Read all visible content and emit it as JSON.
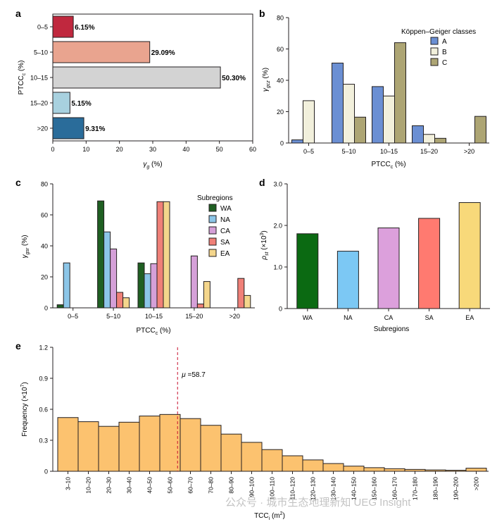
{
  "panels": {
    "a": {
      "letter": "a",
      "type": "hbar",
      "categories": [
        "0–5",
        "5–10",
        "10–15",
        "15–20",
        ">20"
      ],
      "values": [
        6.15,
        29.09,
        50.3,
        5.15,
        9.31
      ],
      "value_labels": [
        "6.15%",
        "29.09%",
        "50.30%",
        "5.15%",
        "9.31%"
      ],
      "colors": [
        "#c0283e",
        "#e9a48f",
        "#d3d3d3",
        "#a8d1df",
        "#2a6c9a"
      ],
      "xlim": [
        0,
        60
      ],
      "xticks": [
        0,
        10,
        20,
        30,
        40,
        50,
        60
      ],
      "ylabel": "PTCC",
      "ylabel_sub": "c",
      "ylabel_unit": " (%)",
      "xlabel": "γ",
      "xlabel_sub": "g",
      "xlabel_unit": " (%)"
    },
    "b": {
      "letter": "b",
      "type": "bar",
      "categories": [
        "0–5",
        "5–10",
        "10–15",
        "15–20",
        ">20"
      ],
      "series": [
        {
          "name": "A",
          "color": "#6b8fd3",
          "values": [
            2,
            51,
            36,
            11,
            0
          ]
        },
        {
          "name": "B",
          "color": "#f2f0dc",
          "values": [
            27,
            37.5,
            30,
            5.5,
            0
          ]
        },
        {
          "name": "C",
          "color": "#ada574",
          "values": [
            0,
            16.5,
            64,
            3,
            17
          ]
        }
      ],
      "ylim": [
        0,
        80
      ],
      "yticks": [
        0,
        20,
        40,
        60,
        80
      ],
      "ylabel": "γ",
      "ylabel_sub": "gcz",
      "ylabel_unit": " (%)",
      "xlabel": "PTCC",
      "xlabel_sub": "c",
      "xlabel_unit": " (%)",
      "legend_title": "Köppen–Geiger classes",
      "legend_pos": "top-right"
    },
    "c": {
      "letter": "c",
      "type": "bar",
      "categories": [
        "0–5",
        "5–10",
        "10–15",
        "15–20",
        ">20"
      ],
      "series": [
        {
          "name": "WA",
          "color": "#1f5f22",
          "values": [
            2,
            69,
            29,
            0,
            0
          ]
        },
        {
          "name": "NA",
          "color": "#8cc6e8",
          "values": [
            29,
            49,
            22,
            0,
            0
          ]
        },
        {
          "name": "CA",
          "color": "#d5a0d8",
          "values": [
            0,
            38,
            28.5,
            33.5,
            0
          ]
        },
        {
          "name": "SA",
          "color": "#f08078",
          "values": [
            0,
            10,
            68.5,
            2.5,
            19
          ]
        },
        {
          "name": "EA",
          "color": "#f4d68c",
          "values": [
            0,
            6.5,
            68.5,
            17,
            8
          ]
        }
      ],
      "ylim": [
        0,
        80
      ],
      "yticks": [
        0,
        20,
        40,
        60,
        80
      ],
      "ylabel": "γ",
      "ylabel_sub": "gsr",
      "ylabel_unit": " (%)",
      "xlabel": "PTCC",
      "xlabel_sub": "c",
      "xlabel_unit": " (%)",
      "legend_title": "Subregions",
      "legend_pos": "top-right"
    },
    "d": {
      "letter": "d",
      "type": "bar",
      "categories": [
        "WA",
        "NA",
        "CA",
        "SA",
        "EA"
      ],
      "values": [
        1.8,
        1.38,
        1.94,
        2.17,
        2.55
      ],
      "colors": [
        "#0b6a12",
        "#7cc8f4",
        "#dca0dc",
        "#ff7a70",
        "#f8d97a"
      ],
      "ylim": [
        0,
        3.0
      ],
      "yticks": [
        "0",
        "1.0",
        "2.0",
        "3.0"
      ],
      "ylabel": "ρ",
      "ylabel_sub": "st",
      "ylabel_unit": " (×10",
      "ylabel_sup": "3",
      "ylabel_close": ")",
      "xlabel": "Subregions"
    },
    "e": {
      "letter": "e",
      "type": "histogram",
      "categories": [
        "3–10",
        "10–20",
        "20–30",
        "30–40",
        "40–50",
        "50–60",
        "60–70",
        "70–80",
        "80–90",
        "90–100",
        "100–110",
        "110–120",
        "120–130",
        "130–140",
        "140–150",
        "150–160",
        "160–170",
        "170–180",
        "180–190",
        "190–200",
        ">200"
      ],
      "values": [
        0.52,
        0.48,
        0.435,
        0.475,
        0.535,
        0.55,
        0.51,
        0.445,
        0.36,
        0.28,
        0.21,
        0.15,
        0.11,
        0.075,
        0.05,
        0.035,
        0.025,
        0.018,
        0.013,
        0.01,
        0.03
      ],
      "color": "#fcc26f",
      "ylim": [
        0,
        1.2
      ],
      "yticks": [
        "0",
        "0.3",
        "0.6",
        "0.9",
        "1.2"
      ],
      "ylabel": "Frequency (×10",
      "ylabel_sup": "7",
      "ylabel_close": ")",
      "xlabel": "TCC",
      "xlabel_sub": "i",
      "xlabel_unit": " (m",
      "xlabel_sup": "2",
      "xlabel_close": ")",
      "mean_label": "μ",
      "mean_value_text": " =58.7",
      "mean_value": 58.7
    }
  },
  "watermark": "公众号 · 城市生态地理新知 UEG Insight"
}
